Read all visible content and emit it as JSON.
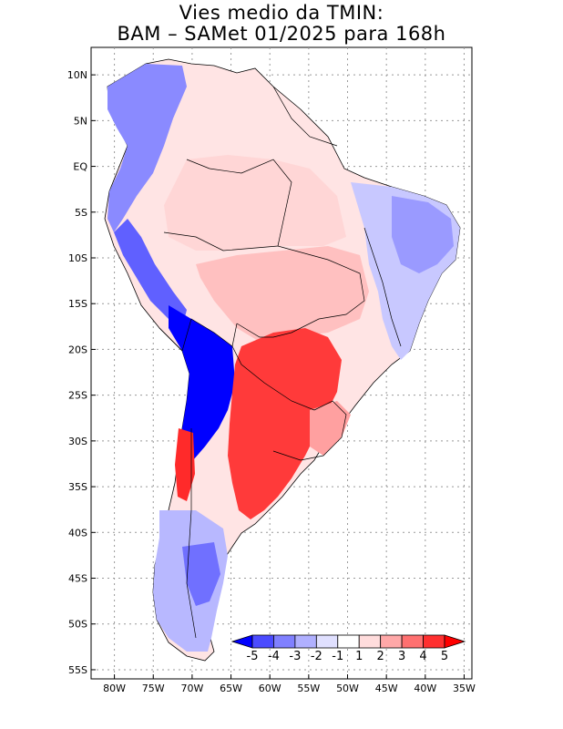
{
  "title": {
    "line1": "Vies medio da TMIN:",
    "line2": "BAM – SAMet 01/2025  para 168h"
  },
  "map": {
    "region": "South America",
    "x_ticks": [
      "80W",
      "75W",
      "70W",
      "65W",
      "60W",
      "55W",
      "50W",
      "45W",
      "40W",
      "35W"
    ],
    "y_ticks": [
      "10N",
      "5N",
      "EQ",
      "5S",
      "10S",
      "15S",
      "20S",
      "25S",
      "30S",
      "35S",
      "40S",
      "45S",
      "50S",
      "55S"
    ],
    "lon_range": [
      -83,
      -34
    ],
    "lat_range": [
      13,
      -56
    ],
    "grid": true
  },
  "colorbar": {
    "labels": [
      "-5",
      "-4",
      "-3",
      "-2",
      "-1",
      "1",
      "2",
      "3",
      "4",
      "5"
    ],
    "colors": [
      "#0000ff",
      "#4b4bff",
      "#8080ff",
      "#b0b0ff",
      "#e0e0ff",
      "#ffffff",
      "#ffdcdc",
      "#ffa8a8",
      "#ff7070",
      "#ff3030",
      "#ff0000"
    ]
  }
}
